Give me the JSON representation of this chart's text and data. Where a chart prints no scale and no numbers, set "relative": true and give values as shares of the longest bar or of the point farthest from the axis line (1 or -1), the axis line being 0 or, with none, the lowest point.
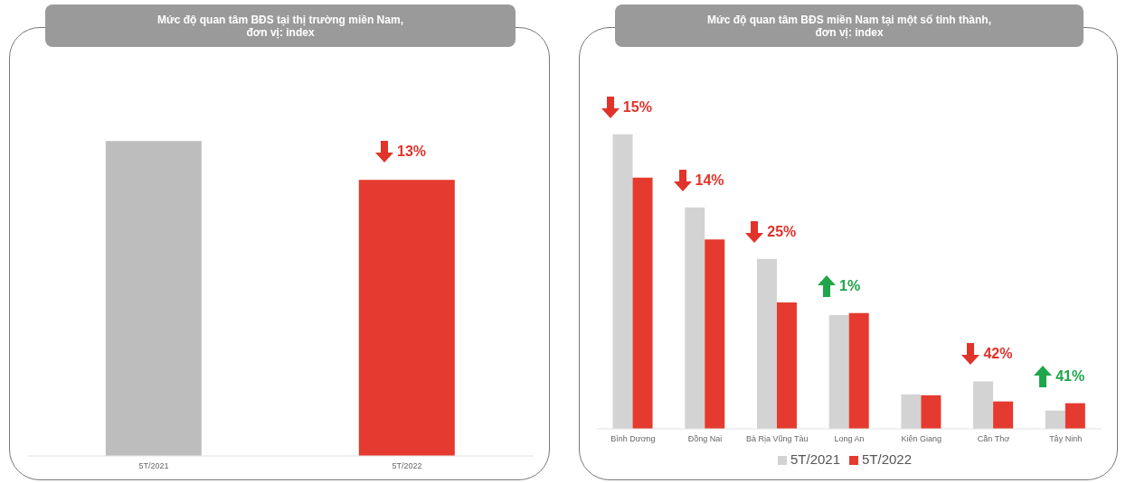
{
  "chart_data": [
    {
      "type": "bar",
      "title": "Mức độ quan tâm BĐS tại thị trường miền Nam,\nđơn vị: index",
      "relative": true,
      "categories": [
        "5T/2021",
        "5T/2022"
      ],
      "values": [
        1,
        0.877
      ],
      "colors": [
        "#bdbdbd",
        "#e53a2f"
      ],
      "legend": false,
      "annotations": [
        {
          "text": "13%",
          "x": "5T/2022",
          "y": 0.877
        }
      ]
    },
    {
      "type": "bar",
      "title": "Mức độ quan tâm BĐS miền Nam tại một số tỉnh thành,\nđơn vị: index",
      "relative": true,
      "categories": [
        "Bình Dương",
        "Đồng Nai",
        "Bà Rịa Vũng Tàu",
        "Long An",
        "Kiên Giang",
        "Cần Thơ",
        "Tây Ninh"
      ],
      "legend": "bottom",
      "series": [
        {
          "name": "5T/2021",
          "color": "#d3d3d3",
          "values": [
            1,
            0.752,
            0.577,
            0.386,
            0.117,
            0.161,
            0.062
          ]
        },
        {
          "name": "5T/2022",
          "color": "#e53a2f",
          "values": [
            0.853,
            0.643,
            0.429,
            0.393,
            0.114,
            0.093,
            0.087
          ]
        }
      ],
      "annotations": [
        {
          "text": "15%",
          "x": "Bình Dương",
          "y": 1
        },
        {
          "text": "14%",
          "x": "Đồng Nai",
          "y": 0.752
        },
        {
          "text": "25%",
          "x": "Bà Rịa Vũng Tàu",
          "y": 0.577
        },
        {
          "text": "1%",
          "x": "Long An",
          "y": 0.393
        },
        {
          "text": "42%",
          "x": "Cần Thơ",
          "y": 0.161
        },
        {
          "text": "41%",
          "x": "Tây Ninh",
          "y": 0.087
        }
      ]
    }
  ]
}
